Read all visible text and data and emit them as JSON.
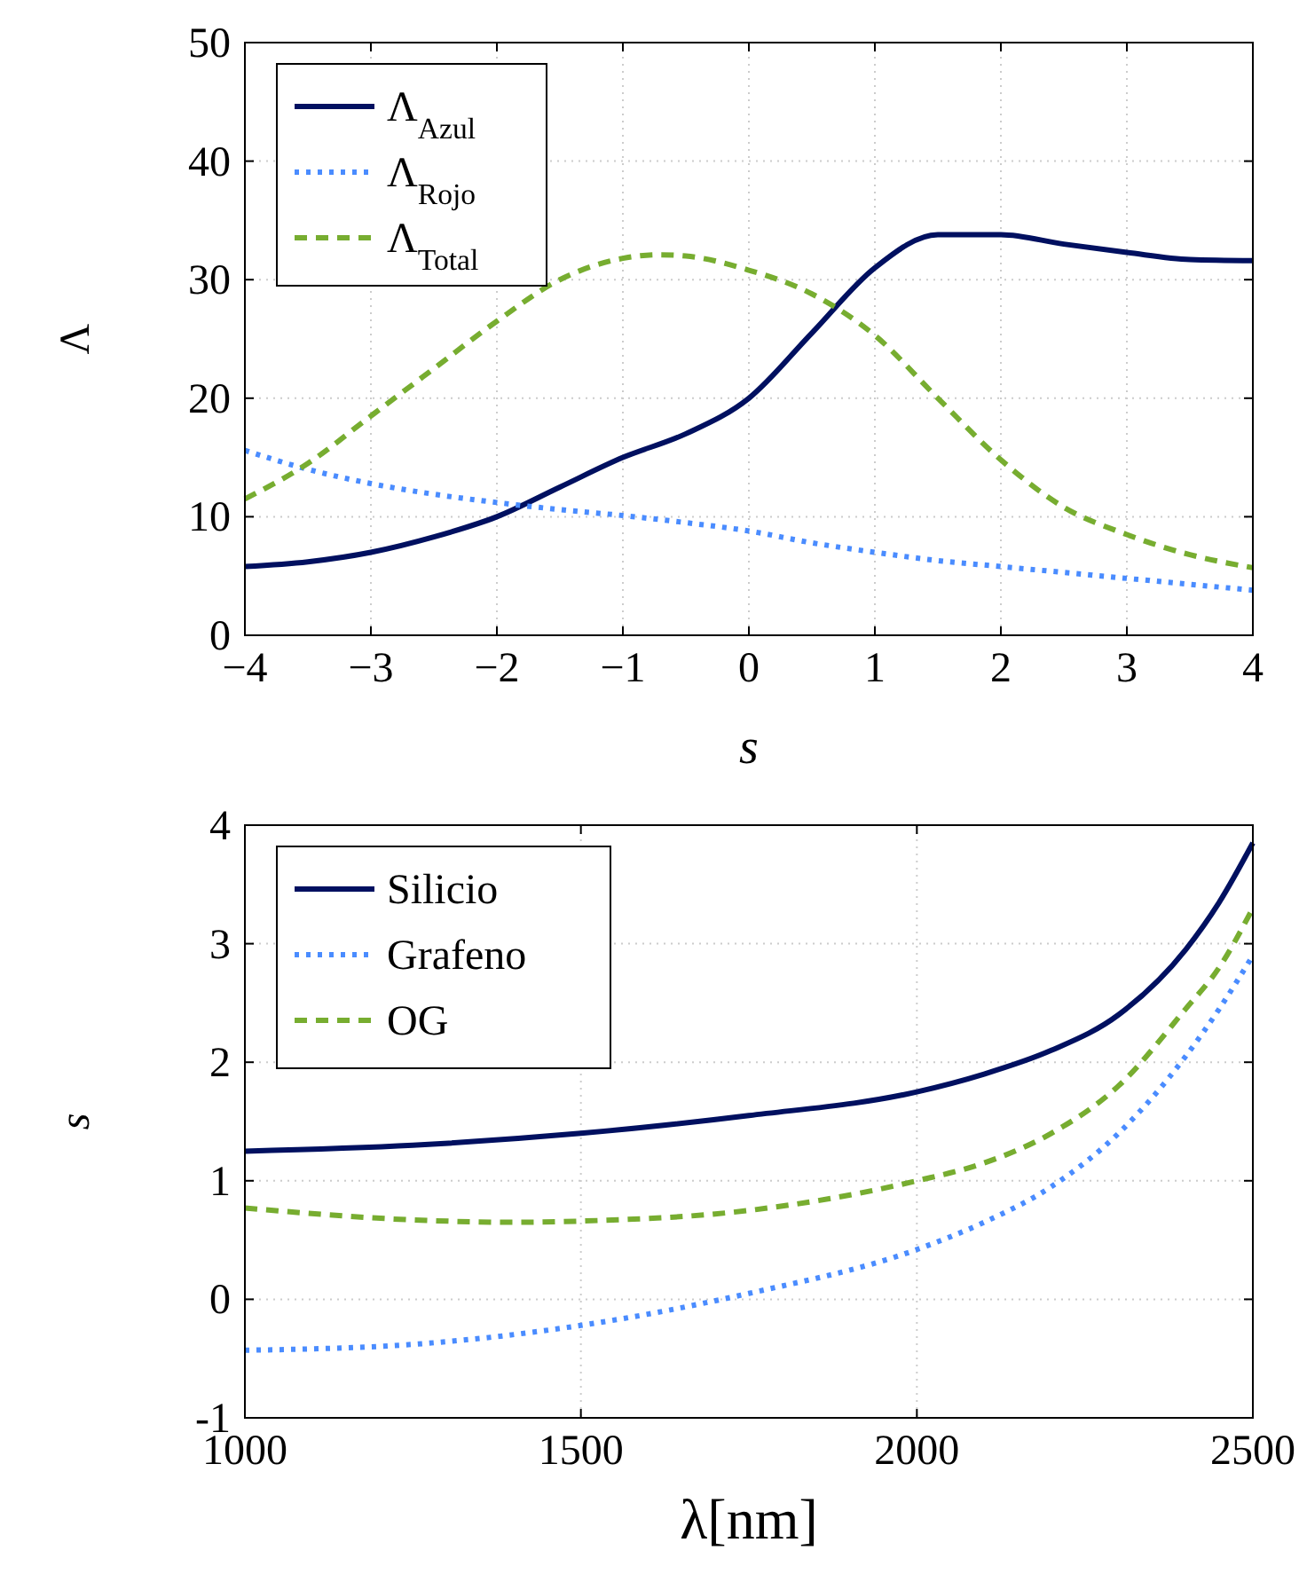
{
  "chart_data": [
    {
      "type": "line",
      "xlabel": "s",
      "ylabel": "Λ",
      "xlim": [
        -4,
        4
      ],
      "ylim": [
        0,
        50
      ],
      "xticks": [
        {
          "value": -4,
          "label": "−4"
        },
        {
          "value": -3,
          "label": "−3"
        },
        {
          "value": -2,
          "label": "−2"
        },
        {
          "value": -1,
          "label": "−1"
        },
        0,
        1,
        2,
        3,
        4
      ],
      "yticks": [
        0,
        10,
        20,
        30,
        40,
        50
      ],
      "grid": true,
      "legend": "top left",
      "series": [
        {
          "name": "Λ$_{Azul}$",
          "color": "#001060",
          "line_style": "solid",
          "x": [
            -4,
            -3.5,
            -3,
            -2.5,
            -2,
            -1.5,
            -1,
            -0.5,
            0,
            0.5,
            1,
            1.5,
            2,
            2.5,
            3,
            3.5,
            4
          ],
          "values": [
            5.8,
            6.2,
            7,
            8.3,
            10,
            12.5,
            15,
            17,
            20,
            25.5,
            31,
            33.8,
            33.8,
            33,
            32.3,
            31.7,
            31.6
          ]
        },
        {
          "name": "Λ$_{Rojo}$",
          "color": "#4a8cff",
          "line_style": "dotted",
          "x": [
            -4,
            -3.5,
            -3,
            -2.5,
            -2,
            -1.5,
            -1,
            -0.5,
            0,
            0.5,
            1,
            1.5,
            2,
            2.5,
            3,
            3.5,
            4
          ],
          "values": [
            15.6,
            14,
            12.8,
            11.9,
            11.2,
            10.6,
            10.1,
            9.5,
            8.8,
            7.8,
            7,
            6.3,
            5.8,
            5.3,
            4.8,
            4.3,
            3.8
          ]
        },
        {
          "name": "Λ$_{Total}$",
          "color": "#77ad30",
          "line_style": "dashed",
          "x": [
            -4,
            -3.5,
            -3,
            -2.5,
            -2,
            -1.5,
            -1,
            -0.7,
            -0.5,
            0,
            0.5,
            1,
            1.5,
            2,
            2.5,
            3,
            3.5,
            4
          ],
          "values": [
            11.5,
            14.5,
            18.5,
            22.5,
            26.5,
            30,
            31.8,
            32.1,
            32,
            30.8,
            28.8,
            25.3,
            20,
            14.8,
            10.8,
            8.5,
            6.8,
            5.7
          ]
        }
      ]
    },
    {
      "type": "line",
      "xlabel": "λ[nm]",
      "ylabel": "s",
      "xlim": [
        1000,
        2500
      ],
      "ylim": [
        -1,
        4
      ],
      "xticks": [
        1000,
        1500,
        2000,
        2500
      ],
      "yticks": [
        -1,
        0,
        1,
        2,
        3,
        4
      ],
      "grid": true,
      "legend": "top left",
      "series": [
        {
          "name": "Silicio",
          "color": "#001060",
          "line_style": "solid",
          "x": [
            1000,
            1250,
            1500,
            1750,
            2000,
            2100,
            2200,
            2300,
            2400,
            2450,
            2500
          ],
          "values": [
            1.25,
            1.3,
            1.4,
            1.55,
            1.75,
            1.9,
            2.1,
            2.4,
            2.95,
            3.35,
            3.85
          ]
        },
        {
          "name": "Grafeno",
          "color": "#4a8cff",
          "line_style": "dotted",
          "x": [
            1000,
            1250,
            1500,
            1750,
            2000,
            2100,
            2200,
            2300,
            2400,
            2450,
            2500
          ],
          "values": [
            -0.43,
            -0.38,
            -0.22,
            0.05,
            0.42,
            0.65,
            0.95,
            1.4,
            2.05,
            2.45,
            2.9
          ]
        },
        {
          "name": "OG",
          "color": "#77ad30",
          "line_style": "dashed",
          "x": [
            1000,
            1250,
            1400,
            1500,
            1750,
            2000,
            2100,
            2200,
            2300,
            2400,
            2450,
            2500
          ],
          "values": [
            0.77,
            0.67,
            0.65,
            0.66,
            0.75,
            1.0,
            1.15,
            1.4,
            1.8,
            2.45,
            2.8,
            3.3
          ]
        }
      ]
    }
  ]
}
